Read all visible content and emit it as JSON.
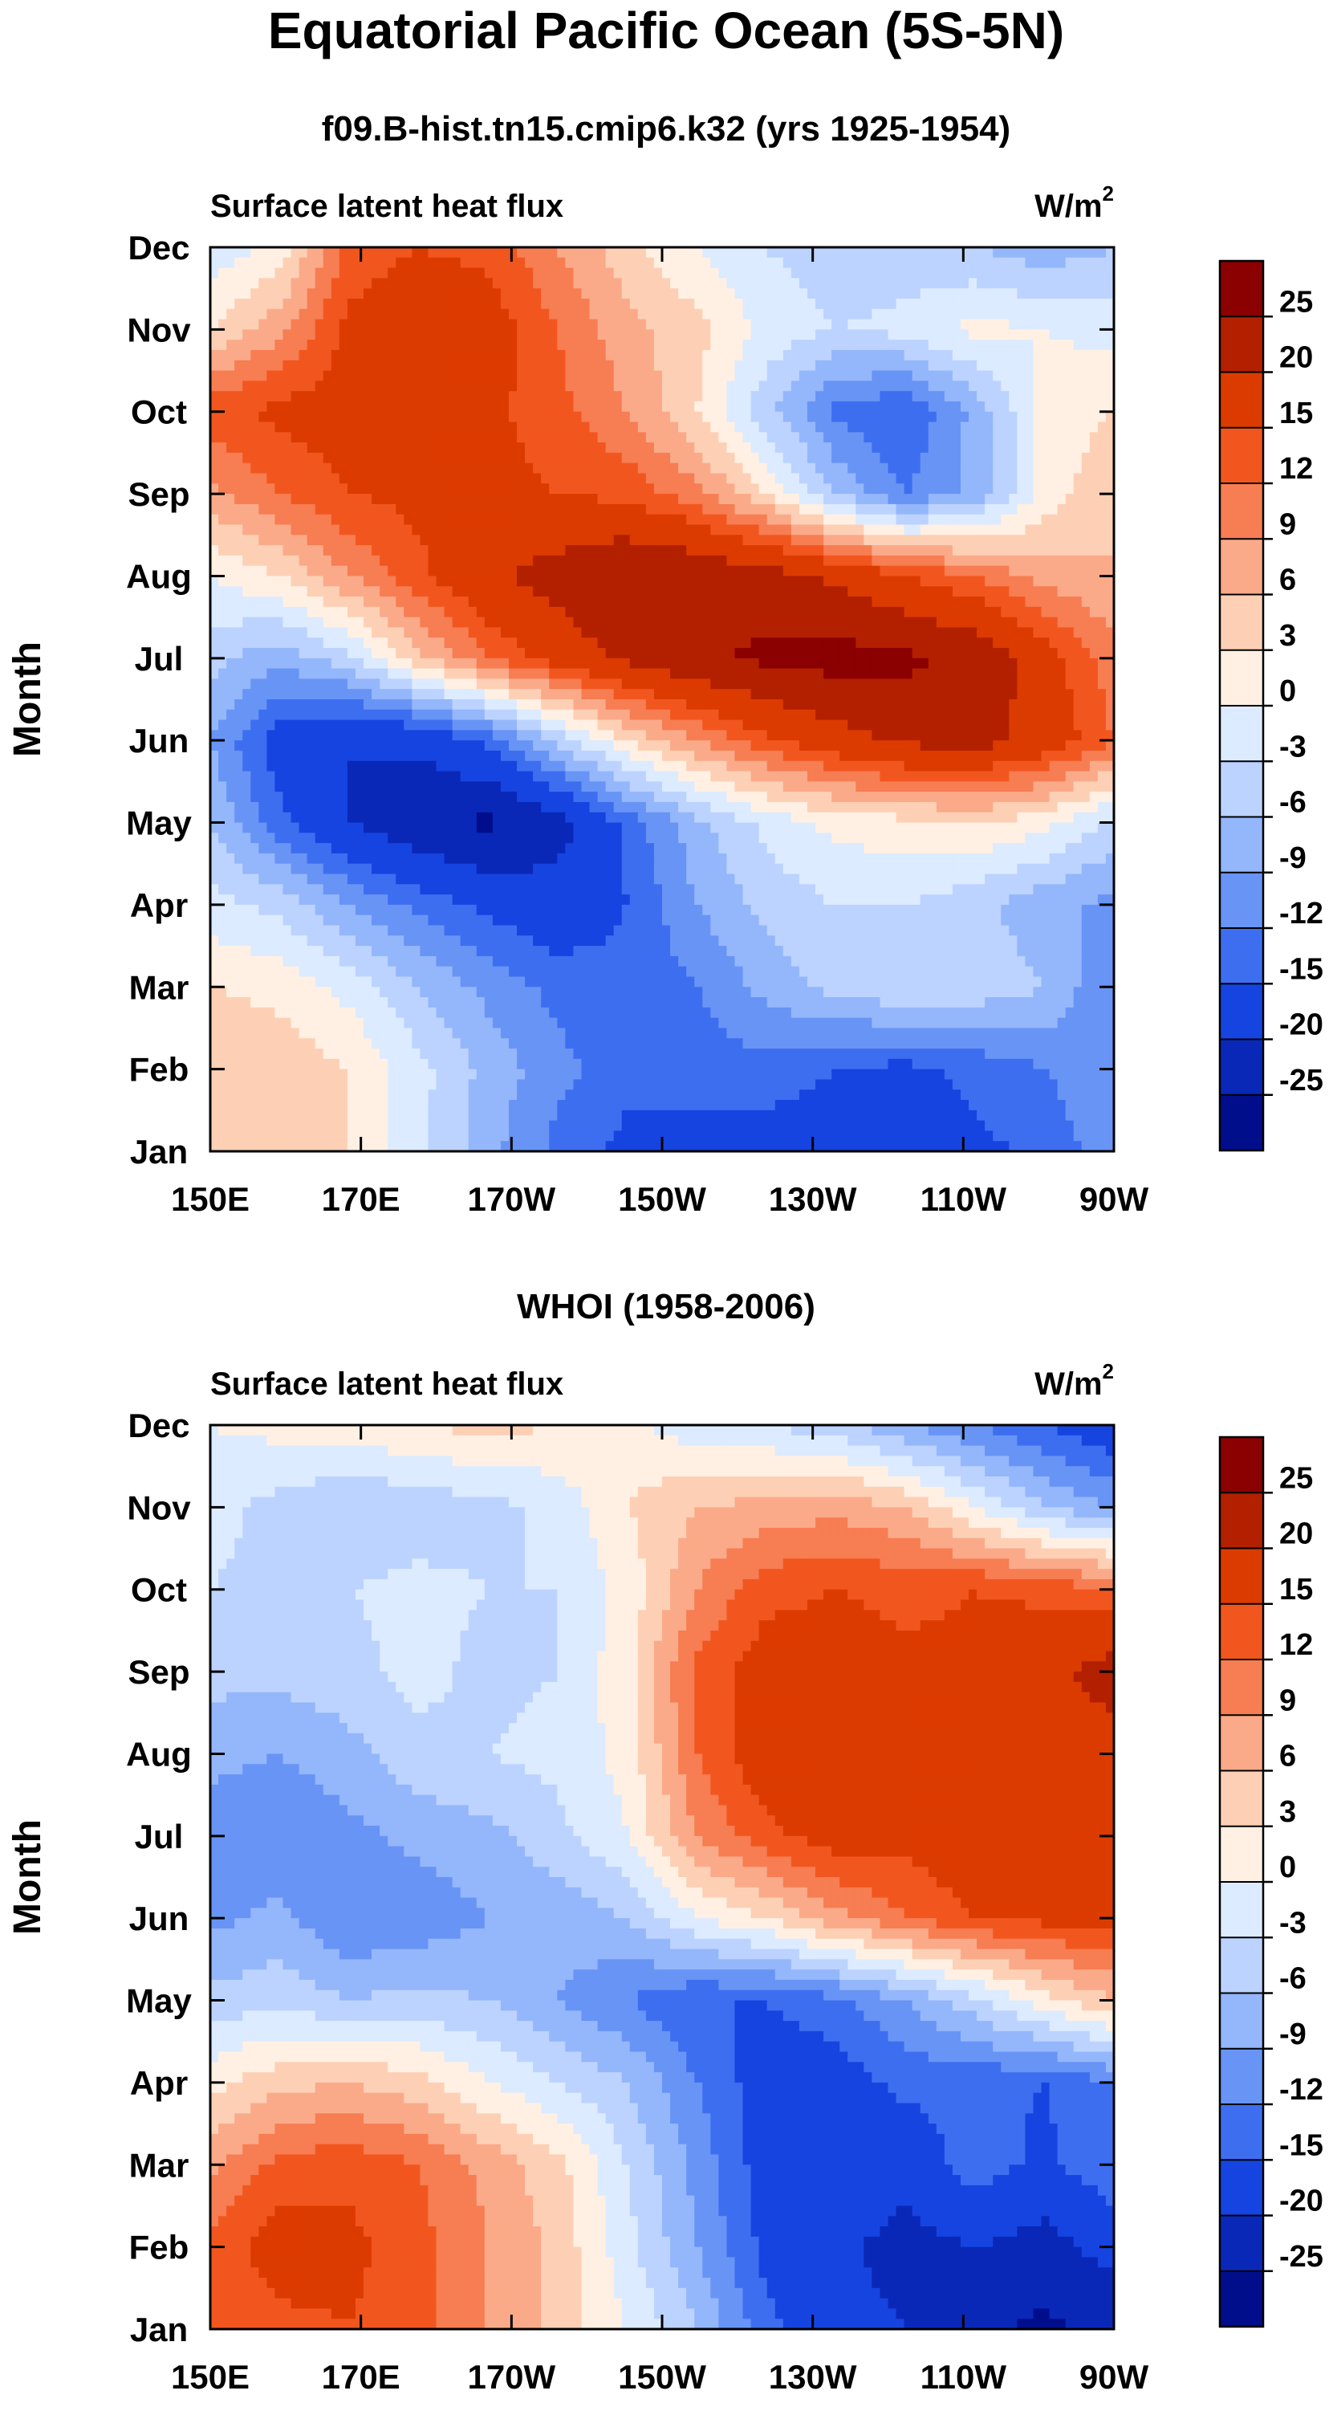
{
  "figure": {
    "title": "Equatorial Pacific Ocean (5S-5N)",
    "colorbar_levels": [
      "25",
      "20",
      "15",
      "12",
      "9",
      "6",
      "3",
      "0",
      "-3",
      "-6",
      "-9",
      "-12",
      "-15",
      "-20",
      "-25"
    ],
    "colors": [
      "#8b0000",
      "#b22000",
      "#dc3b00",
      "#f2561f",
      "#f77d52",
      "#fbaa89",
      "#fdd0b5",
      "#fff0e3",
      "#dcebff",
      "#bcd3ff",
      "#94b6fb",
      "#6894f5",
      "#3e6ef0",
      "#1644e0",
      "#0a28b8",
      "#000e8c"
    ]
  },
  "chart_data": [
    {
      "type": "heatmap",
      "title": "f09.B-hist.tn15.cmip6.k32 (yrs 1925-1954)",
      "left_label": "Surface latent heat flux",
      "right_label": "W/m",
      "right_label_sup": "2",
      "ylabel": "Month",
      "xlabel": "",
      "x_ticks": [
        "150E",
        "170E",
        "170W",
        "150W",
        "130W",
        "110W",
        "90W"
      ],
      "y_ticks": [
        "Jan",
        "Feb",
        "Mar",
        "Apr",
        "May",
        "Jun",
        "Jul",
        "Aug",
        "Sep",
        "Oct",
        "Nov",
        "Dec"
      ],
      "x_range_lon": [
        150,
        270
      ],
      "levels": [
        -25,
        -20,
        -15,
        -12,
        -9,
        -6,
        -3,
        0,
        3,
        6,
        9,
        12,
        15,
        20,
        25
      ],
      "values": [
        [
          3,
          5,
          3,
          -2,
          -8,
          -13,
          -16,
          -16,
          -17,
          -18,
          -18,
          -16,
          -14,
          -10
        ],
        [
          6,
          5,
          3,
          -2,
          -7,
          -11,
          -14,
          -14,
          -13,
          -15,
          -16,
          -14,
          -12,
          -10
        ],
        [
          3,
          2,
          -1,
          -6,
          -10,
          -13,
          -14,
          -12,
          -8,
          -5,
          -3,
          -4,
          -6,
          -12
        ],
        [
          -2,
          -4,
          -9,
          -13,
          -16,
          -18,
          -15,
          -9,
          -5,
          -3,
          -3,
          -5,
          -8,
          -10
        ],
        [
          -6,
          -14,
          -20,
          -24,
          -26,
          -22,
          -14,
          -7,
          -2,
          1,
          2,
          3,
          1,
          -4
        ],
        [
          -9,
          -17,
          -20,
          -19,
          -14,
          -5,
          3,
          9,
          14,
          18,
          21,
          22,
          18,
          12
        ],
        [
          -5,
          -8,
          -4,
          5,
          12,
          17,
          21,
          24,
          26,
          27,
          26,
          24,
          17,
          10
        ],
        [
          0,
          3,
          9,
          14,
          19,
          22,
          25,
          24,
          22,
          19,
          15,
          12,
          8,
          6
        ],
        [
          8,
          12,
          15,
          16,
          16,
          15,
          14,
          10,
          3,
          -6,
          -12,
          -8,
          1,
          6
        ],
        [
          14,
          16,
          17,
          17,
          16,
          13,
          9,
          3,
          -5,
          -13,
          -15,
          -8,
          1,
          3
        ],
        [
          3,
          8,
          16,
          18,
          17,
          12,
          7,
          4,
          -1,
          -3,
          -2,
          1,
          0,
          -1
        ],
        [
          -2,
          1,
          13,
          15,
          14,
          9,
          4,
          0,
          -3,
          -5,
          -5,
          -6,
          -8,
          -6
        ]
      ]
    },
    {
      "type": "heatmap",
      "title": "WHOI (1958-2006)",
      "left_label": "Surface latent heat flux",
      "right_label": "W/m",
      "right_label_sup": "2",
      "ylabel": "Month",
      "xlabel": "",
      "x_ticks": [
        "150E",
        "170E",
        "170W",
        "150W",
        "130W",
        "110W",
        "90W"
      ],
      "y_ticks": [
        "Jan",
        "Feb",
        "Mar",
        "Apr",
        "May",
        "Jun",
        "Jul",
        "Aug",
        "Sep",
        "Oct",
        "Nov",
        "Dec"
      ],
      "x_range_lon": [
        150,
        270
      ],
      "levels": [
        -25,
        -20,
        -15,
        -12,
        -9,
        -6,
        -3,
        0,
        3,
        6,
        9,
        12,
        15,
        20,
        25
      ],
      "values": [
        [
          12,
          14,
          15,
          13,
          9,
          5,
          0,
          -6,
          -14,
          -18,
          -20,
          -24,
          -26,
          -24
        ],
        [
          13,
          17,
          16,
          13,
          9,
          5,
          -2,
          -9,
          -16,
          -19,
          -22,
          -20,
          -22,
          -18
        ],
        [
          8,
          13,
          14,
          12,
          8,
          4,
          -3,
          -10,
          -17,
          -15,
          -18,
          -13,
          -16,
          -12
        ],
        [
          2,
          5,
          6,
          4,
          0,
          -3,
          -6,
          -12,
          -17,
          -17,
          -14,
          -14,
          -15,
          -12
        ],
        [
          -5,
          -4,
          -6,
          -5,
          -6,
          -9,
          -12,
          -15,
          -15,
          -13,
          -9,
          -4,
          2,
          6
        ],
        [
          -10,
          -8,
          -12,
          -11,
          -9,
          -8,
          -6,
          0,
          3,
          8,
          12,
          15,
          16,
          16
        ],
        [
          -11,
          -12,
          -10,
          -8,
          -7,
          -4,
          0,
          9,
          14,
          17,
          16,
          18,
          18,
          17
        ],
        [
          -8,
          -9,
          -7,
          -4,
          -3,
          -2,
          1,
          12,
          18,
          18,
          16,
          16,
          18,
          18
        ],
        [
          -5,
          -5,
          -4,
          -2,
          -4,
          -3,
          2,
          13,
          17,
          17,
          16,
          16,
          19,
          22
        ],
        [
          -3,
          -4,
          -3,
          -2,
          -3,
          -3,
          1,
          9,
          14,
          15,
          14,
          15,
          14,
          12
        ],
        [
          -2,
          -4,
          -6,
          -5,
          -4,
          -2,
          3,
          6,
          7,
          8,
          6,
          0,
          -6,
          -9
        ],
        [
          0,
          1,
          2,
          3,
          4,
          3,
          1,
          -2,
          -3,
          -5,
          -9,
          -12,
          -15,
          -18
        ]
      ]
    }
  ]
}
